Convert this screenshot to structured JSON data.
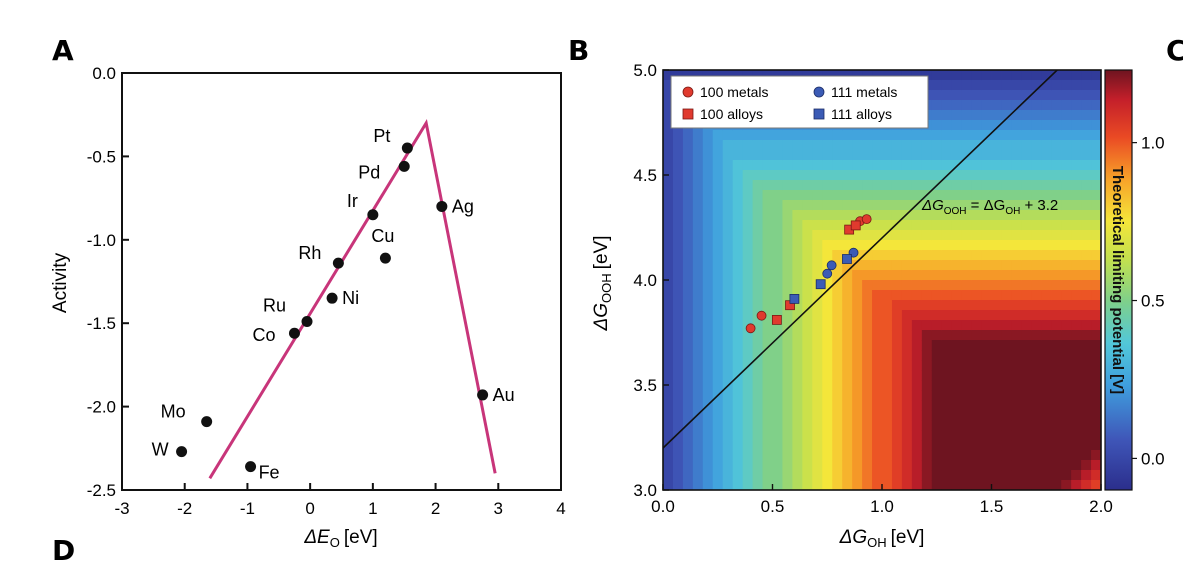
{
  "panels": {
    "a": "A",
    "b": "B",
    "c": "C",
    "d": "D"
  },
  "chart_data": [
    {
      "type": "scatter",
      "panel": "A",
      "xlabel_main": "ΔE",
      "xlabel_sub": "O",
      "xlabel_unit": "[eV]",
      "ylabel": "Activity",
      "xlim": [
        -3,
        4
      ],
      "ylim": [
        -2.5,
        0.0
      ],
      "xticks": [
        "-3",
        "-2",
        "-1",
        "0",
        "1",
        "2",
        "3",
        "4"
      ],
      "yticks": [
        "0.0",
        "-0.5",
        "-1.0",
        "-1.5",
        "-2.0",
        "-2.5"
      ],
      "points": [
        {
          "label": "Pt",
          "x": 1.55,
          "y": -0.45
        },
        {
          "label": "Pd",
          "x": 1.5,
          "y": -0.56
        },
        {
          "label": "Ir",
          "x": 1.0,
          "y": -0.85
        },
        {
          "label": "Ag",
          "x": 2.1,
          "y": -0.8
        },
        {
          "label": "Cu",
          "x": 1.2,
          "y": -1.11
        },
        {
          "label": "Rh",
          "x": 0.45,
          "y": -1.14
        },
        {
          "label": "Ni",
          "x": 0.35,
          "y": -1.35
        },
        {
          "label": "Ru",
          "x": -0.05,
          "y": -1.49
        },
        {
          "label": "Co",
          "x": -0.25,
          "y": -1.56
        },
        {
          "label": "Au",
          "x": 2.75,
          "y": -1.93
        },
        {
          "label": "Mo",
          "x": -1.65,
          "y": -2.09
        },
        {
          "label": "W",
          "x": -2.05,
          "y": -2.27
        },
        {
          "label": "Fe",
          "x": -0.95,
          "y": -2.36
        }
      ],
      "volcano": [
        [
          -1.6,
          -2.43
        ],
        [
          1.85,
          -0.3
        ],
        [
          2.95,
          -2.4
        ]
      ],
      "line_color": "#c8357a"
    },
    {
      "type": "heatmap",
      "panel": "B",
      "xlabel_main": "ΔG",
      "xlabel_sub": "OH",
      "xlabel_unit": "[eV]",
      "ylabel_main": "ΔG",
      "ylabel_sub": "OOH",
      "ylabel_unit": "[eV]",
      "xlim": [
        0.0,
        2.0
      ],
      "ylim": [
        3.0,
        5.0
      ],
      "xticks": [
        "0.0",
        "0.5",
        "1.0",
        "1.5",
        "2.0"
      ],
      "yticks": [
        "3.0",
        "3.5",
        "4.0",
        "4.5",
        "5.0"
      ],
      "colorbar": {
        "label": "Theoretical limiting potential [V]",
        "ticks": [
          "1.0",
          "0.5",
          "0.0"
        ],
        "range": [
          -0.1,
          1.23
        ]
      },
      "scaling_line": {
        "main": "ΔG",
        "sub1": "OOH",
        "eq": " = ΔG",
        "sub2": "OH",
        "tail": " + 3.2",
        "slope": 1,
        "intercept": 3.2
      },
      "legend": [
        {
          "label": "100 metals",
          "marker": "circle",
          "color": "#e03a2e"
        },
        {
          "label": "111 metals",
          "marker": "circle",
          "color": "#3b5bb5"
        },
        {
          "label": "100 alloys",
          "marker": "square",
          "color": "#e03a2e"
        },
        {
          "label": "111 alloys",
          "marker": "square",
          "color": "#3b5bb5"
        }
      ],
      "series": [
        {
          "name": "100 metals",
          "points": [
            [
              0.4,
              3.77
            ],
            [
              0.45,
              3.83
            ],
            [
              0.9,
              4.28
            ],
            [
              0.93,
              4.29
            ]
          ]
        },
        {
          "name": "111 metals",
          "points": [
            [
              0.75,
              4.03
            ],
            [
              0.77,
              4.07
            ],
            [
              0.87,
              4.13
            ]
          ]
        },
        {
          "name": "100 alloys",
          "points": [
            [
              0.52,
              3.81
            ],
            [
              0.58,
              3.88
            ],
            [
              0.85,
              4.24
            ],
            [
              0.88,
              4.26
            ]
          ]
        },
        {
          "name": "111 alloys",
          "points": [
            [
              0.6,
              3.91
            ],
            [
              0.72,
              3.98
            ],
            [
              0.84,
              4.1
            ]
          ]
        }
      ]
    }
  ]
}
